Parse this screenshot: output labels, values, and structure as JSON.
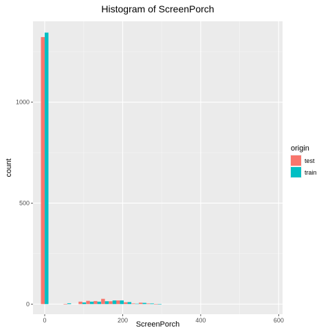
{
  "chart_data": {
    "type": "bar",
    "subtype": "histogram-dodged",
    "title": "Histogram of ScreenPorch",
    "xlabel": "ScreenPorch",
    "ylabel": "count",
    "xlim": [
      -30,
      610
    ],
    "ylim": [
      -50,
      1400
    ],
    "x_ticks": [
      0,
      200,
      400,
      600
    ],
    "y_ticks": [
      0,
      500,
      1000
    ],
    "binwidth": 19.3,
    "grid": true,
    "legend": {
      "title": "origin",
      "position": "right",
      "entries": [
        "test",
        "train"
      ]
    },
    "series": [
      {
        "name": "test",
        "color": "#F8766D",
        "bins": [
          {
            "x": 0,
            "y": 1322
          },
          {
            "x": 58,
            "y": 1
          },
          {
            "x": 96.5,
            "y": 12
          },
          {
            "x": 116,
            "y": 16
          },
          {
            "x": 135,
            "y": 15
          },
          {
            "x": 154.5,
            "y": 26
          },
          {
            "x": 174,
            "y": 14
          },
          {
            "x": 193,
            "y": 18
          },
          {
            "x": 212.5,
            "y": 9
          },
          {
            "x": 232,
            "y": 3
          },
          {
            "x": 251,
            "y": 7
          },
          {
            "x": 270.5,
            "y": 3
          },
          {
            "x": 290,
            "y": 1
          }
        ]
      },
      {
        "name": "train",
        "color": "#00BFC4",
        "bins": [
          {
            "x": 0,
            "y": 1344
          },
          {
            "x": 58,
            "y": 4
          },
          {
            "x": 96.5,
            "y": 8
          },
          {
            "x": 116,
            "y": 12
          },
          {
            "x": 135,
            "y": 12
          },
          {
            "x": 154.5,
            "y": 14
          },
          {
            "x": 174,
            "y": 18
          },
          {
            "x": 193,
            "y": 18
          },
          {
            "x": 212.5,
            "y": 10
          },
          {
            "x": 232,
            "y": 2
          },
          {
            "x": 251,
            "y": 6
          },
          {
            "x": 270.5,
            "y": 3
          },
          {
            "x": 290,
            "y": 1
          }
        ]
      }
    ]
  }
}
